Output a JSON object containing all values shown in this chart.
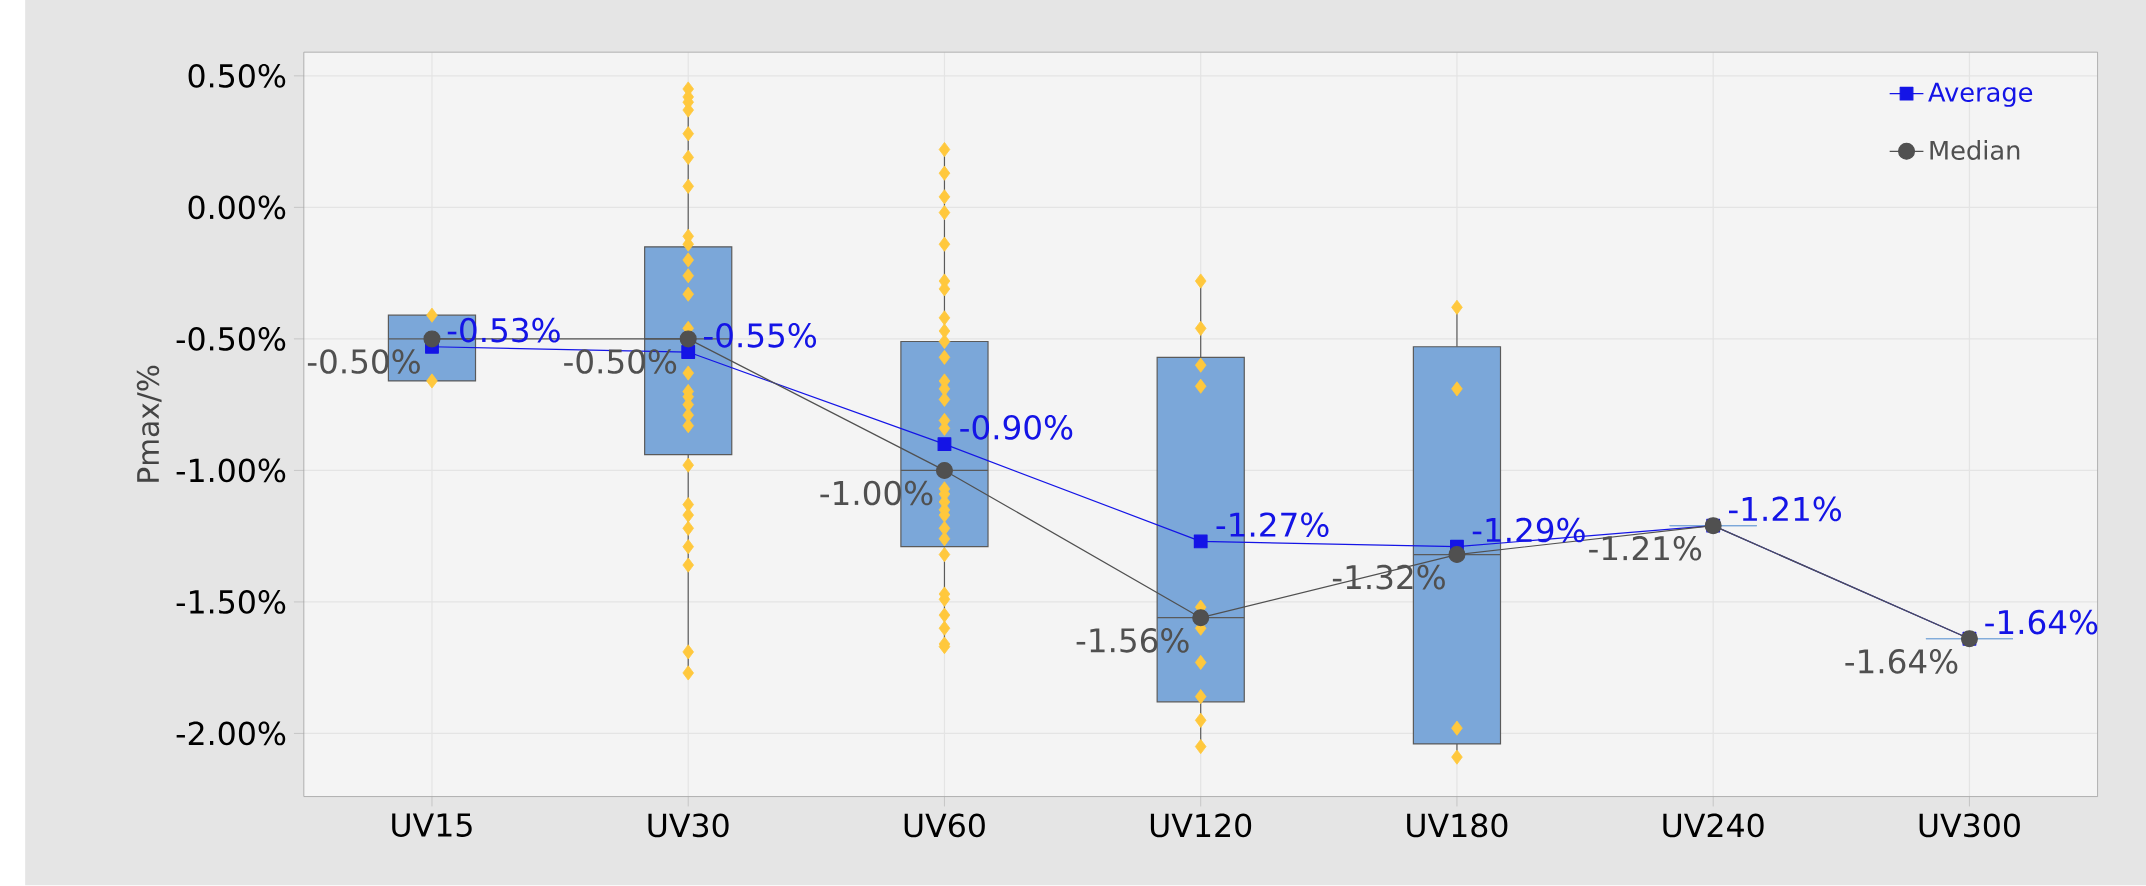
{
  "chart_data": {
    "type": "box",
    "ylabel": "Pmax/%",
    "categories": [
      "UV15",
      "UV30",
      "UV60",
      "UV120",
      "UV180",
      "UV240",
      "UV300"
    ],
    "ylim": [
      -2.24,
      0.59
    ],
    "yticks": [
      {
        "value": 0.5,
        "label": "0.50%"
      },
      {
        "value": 0.0,
        "label": "0.00%"
      },
      {
        "value": -0.5,
        "label": "-0.50%"
      },
      {
        "value": -1.0,
        "label": "-1.00%"
      },
      {
        "value": -1.5,
        "label": "-1.50%"
      },
      {
        "value": -2.0,
        "label": "-2.00%"
      }
    ],
    "grid": true,
    "legend": "top right",
    "series": [
      {
        "color": "#7ba7d9",
        "boxes": [
          {
            "low": -0.66,
            "q1": -0.66,
            "median": -0.5,
            "q3": -0.41,
            "high": -0.41
          },
          {
            "low": -1.77,
            "q1": -0.94,
            "median": -0.5,
            "q3": -0.15,
            "high": 0.45
          },
          {
            "low": -1.67,
            "q1": -1.29,
            "median": -1.0,
            "q3": -0.51,
            "high": 0.22
          },
          {
            "low": -2.05,
            "q1": -1.88,
            "median": -1.56,
            "q3": -0.57,
            "high": -0.28
          },
          {
            "low": -2.09,
            "q1": -2.04,
            "median": -1.32,
            "q3": -0.53,
            "high": -0.38
          },
          {
            "low": -1.21,
            "q1": -1.21,
            "median": -1.21,
            "q3": -1.21,
            "high": -1.21
          },
          {
            "low": -1.64,
            "q1": -1.64,
            "median": -1.64,
            "q3": -1.64,
            "high": -1.64
          }
        ]
      },
      {
        "type": "scatter",
        "color": "#ffc83d",
        "marker": "diamond",
        "x": [
          "UV15",
          "UV15",
          "UV30",
          "UV30",
          "UV30",
          "UV30",
          "UV30",
          "UV30",
          "UV30",
          "UV30",
          "UV30",
          "UV30",
          "UV30",
          "UV30",
          "UV30",
          "UV30",
          "UV30",
          "UV30",
          "UV30",
          "UV30",
          "UV30",
          "UV30",
          "UV30",
          "UV30",
          "UV30",
          "UV30",
          "UV30",
          "UV30",
          "UV30",
          "UV60",
          "UV60",
          "UV60",
          "UV60",
          "UV60",
          "UV60",
          "UV60",
          "UV60",
          "UV60",
          "UV60",
          "UV60",
          "UV60",
          "UV60",
          "UV60",
          "UV60",
          "UV60",
          "UV60",
          "UV60",
          "UV60",
          "UV60",
          "UV60",
          "UV60",
          "UV60",
          "UV60",
          "UV60",
          "UV60",
          "UV60",
          "UV60",
          "UV60",
          "UV60",
          "UV120",
          "UV120",
          "UV120",
          "UV120",
          "UV120",
          "UV120",
          "UV120",
          "UV120",
          "UV120",
          "UV120",
          "UV180",
          "UV180",
          "UV180",
          "UV180"
        ],
        "values": [
          -0.41,
          -0.66,
          0.45,
          0.42,
          0.4,
          0.37,
          0.28,
          0.19,
          0.08,
          -0.11,
          -0.14,
          -0.2,
          -0.26,
          -0.33,
          -0.46,
          -0.63,
          -0.7,
          -0.72,
          -0.75,
          -0.79,
          -0.83,
          -0.98,
          -1.13,
          -1.17,
          -1.22,
          -1.29,
          -1.36,
          -1.69,
          -1.77,
          0.22,
          0.13,
          0.04,
          -0.02,
          -0.14,
          -0.28,
          -0.31,
          -0.42,
          -0.47,
          -0.51,
          -0.57,
          -0.66,
          -0.69,
          -0.73,
          -0.81,
          -0.84,
          -1.07,
          -1.09,
          -1.12,
          -1.15,
          -1.17,
          -1.22,
          -1.26,
          -1.32,
          -1.47,
          -1.49,
          -1.55,
          -1.6,
          -1.66,
          -1.67,
          -0.28,
          -0.46,
          -0.6,
          -0.68,
          -1.52,
          -1.6,
          -1.73,
          -1.86,
          -1.95,
          -2.05,
          -0.38,
          -0.69,
          -1.98,
          -2.09
        ]
      },
      {
        "type": "line",
        "name": "Average",
        "color": "#1414e6",
        "marker": "square",
        "values": [
          -0.53,
          -0.55,
          -0.9,
          -1.27,
          -1.29,
          -1.21,
          -1.64
        ],
        "value_labels": [
          "-0.53%",
          "-0.55%",
          "-0.90%",
          "-1.27%",
          "-1.29%",
          "-1.21%",
          "-1.64%"
        ]
      },
      {
        "type": "line",
        "name": "Median",
        "color": "#505050",
        "marker": "circle",
        "values": [
          -0.5,
          -0.5,
          -1.0,
          -1.56,
          -1.32,
          -1.21,
          -1.64
        ],
        "value_labels": [
          "-0.50%",
          "-0.50%",
          "-1.00%",
          "-1.56%",
          "-1.32%",
          "-1.21%",
          "-1.64%"
        ]
      }
    ]
  }
}
